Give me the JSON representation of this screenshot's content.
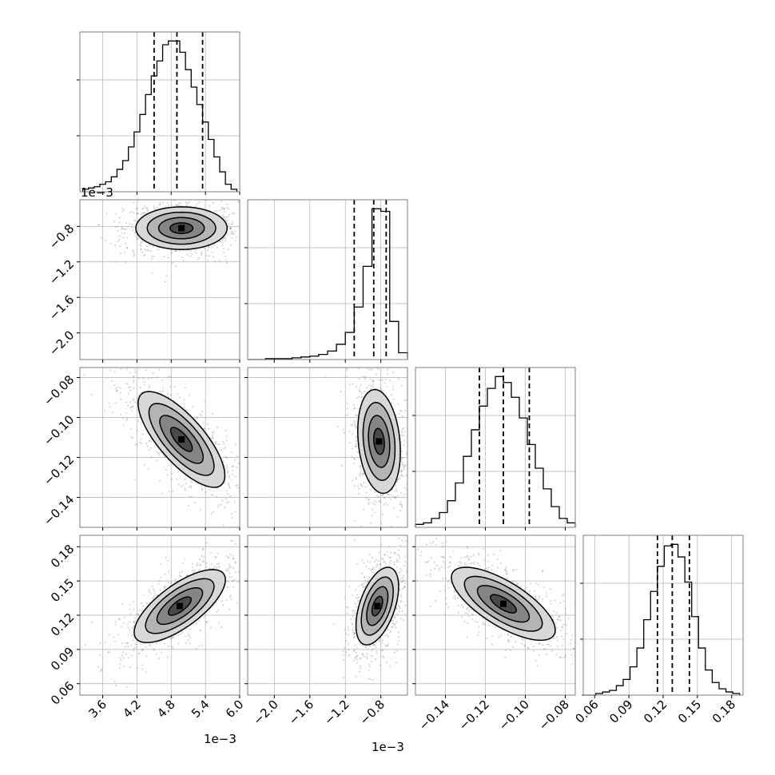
{
  "figure": {
    "type": "corner-plot",
    "offset_labels": {
      "p0": "1e−3",
      "p1": "1e−3"
    }
  },
  "colors": {
    "line": "#000000",
    "grid": "#b0b0b0",
    "frame": "#000000",
    "hist2d_dark": "#000000"
  },
  "chart_data": [
    {
      "type": "histogram",
      "panel": "p0",
      "grid": true,
      "xlim": [
        3.2,
        6.0
      ],
      "xunit_offset": "1e-3",
      "bin_centers": [
        3.3,
        3.4,
        3.5,
        3.6,
        3.7,
        3.8,
        3.9,
        4.0,
        4.1,
        4.2,
        4.3,
        4.4,
        4.5,
        4.6,
        4.7,
        4.8,
        4.9,
        5.0,
        5.1,
        5.2,
        5.3,
        5.4,
        5.5,
        5.6,
        5.7,
        5.8,
        5.9
      ],
      "counts": [
        2,
        3,
        4,
        6,
        8,
        12,
        18,
        25,
        36,
        48,
        62,
        78,
        93,
        105,
        118,
        121,
        121,
        112,
        98,
        84,
        70,
        56,
        42,
        28,
        16,
        6,
        2
      ],
      "quantiles": [
        4.5,
        4.9,
        5.35
      ]
    },
    {
      "type": "histogram",
      "panel": "p1",
      "grid": true,
      "xlim": [
        -2.3,
        -0.5
      ],
      "xunit_offset": "1e-3",
      "bin_centers": [
        -2.25,
        -2.15,
        -2.05,
        -1.95,
        -1.85,
        -1.75,
        -1.65,
        -1.55,
        -1.45,
        -1.35,
        -1.25,
        -1.15,
        -1.05,
        -0.95,
        -0.85,
        -0.75,
        -0.65,
        -0.55
      ],
      "counts": [
        0,
        0,
        1,
        1,
        1,
        2,
        3,
        4,
        6,
        10,
        18,
        32,
        62,
        110,
        178,
        175,
        45,
        8
      ],
      "quantiles": [
        -1.1,
        -0.88,
        -0.74
      ]
    },
    {
      "type": "histogram",
      "panel": "p2",
      "grid": true,
      "xlim": [
        -0.155,
        -0.075
      ],
      "bin_centers": [
        -0.153,
        -0.149,
        -0.145,
        -0.141,
        -0.137,
        -0.133,
        -0.129,
        -0.125,
        -0.121,
        -0.117,
        -0.113,
        -0.109,
        -0.105,
        -0.101,
        -0.097,
        -0.093,
        -0.089,
        -0.085,
        -0.081,
        -0.077
      ],
      "counts": [
        2,
        3,
        6,
        10,
        18,
        30,
        48,
        66,
        82,
        94,
        102,
        98,
        88,
        74,
        56,
        40,
        26,
        14,
        6,
        3
      ],
      "quantiles": [
        -0.123,
        -0.111,
        -0.098
      ]
    },
    {
      "type": "histogram",
      "panel": "p3",
      "grid": true,
      "xlim": [
        0.05,
        0.19
      ],
      "bin_centers": [
        0.052,
        0.058,
        0.064,
        0.07,
        0.076,
        0.082,
        0.088,
        0.094,
        0.1,
        0.106,
        0.112,
        0.118,
        0.124,
        0.13,
        0.136,
        0.142,
        0.148,
        0.154,
        0.16,
        0.166,
        0.172,
        0.178,
        0.184
      ],
      "counts": [
        0,
        0,
        1,
        2,
        3,
        6,
        10,
        18,
        30,
        48,
        66,
        82,
        95,
        96,
        88,
        72,
        50,
        30,
        16,
        8,
        4,
        2,
        1
      ],
      "quantiles": [
        0.115,
        0.128,
        0.143
      ]
    },
    {
      "type": "hist2d-contour",
      "panel": "p0-p1",
      "grid": true,
      "xlim": [
        3.2,
        6.0
      ],
      "ylim": [
        -2.3,
        -0.5
      ],
      "center": [
        4.98,
        -0.82
      ],
      "sigma": [
        0.4,
        0.12
      ],
      "rho": 0.0,
      "contour_levels": [
        0.5,
        1.0,
        1.5,
        2.0
      ]
    },
    {
      "type": "hist2d-contour",
      "panel": "p0-p2",
      "grid": true,
      "xlim": [
        3.2,
        6.0
      ],
      "ylim": [
        -0.155,
        -0.075
      ],
      "center": [
        4.98,
        -0.111
      ],
      "sigma": [
        0.38,
        0.012
      ],
      "rho": -0.75,
      "contour_levels": [
        0.5,
        1.0,
        1.5,
        2.0
      ]
    },
    {
      "type": "hist2d-contour",
      "panel": "p1-p2",
      "grid": true,
      "xlim": [
        -2.3,
        -0.5
      ],
      "ylim": [
        -0.155,
        -0.075
      ],
      "center": [
        -0.82,
        -0.112
      ],
      "sigma": [
        0.12,
        0.013
      ],
      "rho": -0.2,
      "contour_levels": [
        0.5,
        1.0,
        1.5,
        2.0
      ]
    },
    {
      "type": "hist2d-contour",
      "panel": "p0-p3",
      "grid": true,
      "xlim": [
        3.2,
        6.0
      ],
      "ylim": [
        0.05,
        0.19
      ],
      "center": [
        4.95,
        0.128
      ],
      "sigma": [
        0.4,
        0.016
      ],
      "rho": 0.72,
      "contour_levels": [
        0.5,
        1.0,
        1.5,
        2.0
      ]
    },
    {
      "type": "hist2d-contour",
      "panel": "p1-p3",
      "grid": true,
      "xlim": [
        -2.3,
        -0.5
      ],
      "ylim": [
        0.05,
        0.19
      ],
      "center": [
        -0.84,
        0.128
      ],
      "sigma": [
        0.12,
        0.017
      ],
      "rho": 0.5,
      "contour_levels": [
        0.5,
        1.0,
        1.5,
        2.0
      ]
    },
    {
      "type": "hist2d-contour",
      "panel": "p2-p3",
      "grid": true,
      "xlim": [
        -0.155,
        -0.075
      ],
      "ylim": [
        0.05,
        0.19
      ],
      "center": [
        -0.111,
        0.13
      ],
      "sigma": [
        0.013,
        0.016
      ],
      "rho": -0.72,
      "contour_levels": [
        0.5,
        1.0,
        1.5,
        2.0
      ]
    }
  ],
  "axes_ticks": {
    "p0": {
      "ticks": [
        3.6,
        4.2,
        4.8,
        5.4,
        6.0
      ],
      "labels": [
        "3.6",
        "4.2",
        "4.8",
        "5.4",
        "6.0"
      ]
    },
    "p1": {
      "ticks": [
        -2.0,
        -1.6,
        -1.2,
        -0.8
      ],
      "labels": [
        "−2.0",
        "−1.6",
        "−1.2",
        "−0.8"
      ]
    },
    "p2": {
      "ticks": [
        -0.14,
        -0.12,
        -0.1,
        -0.08
      ],
      "labels": [
        "−0.14",
        "−0.12",
        "−0.10",
        "−0.08"
      ]
    },
    "p3": {
      "ticks": [
        0.06,
        0.09,
        0.12,
        0.15,
        0.18
      ],
      "labels": [
        "0.06",
        "0.09",
        "0.12",
        "0.15",
        "0.18"
      ]
    }
  }
}
